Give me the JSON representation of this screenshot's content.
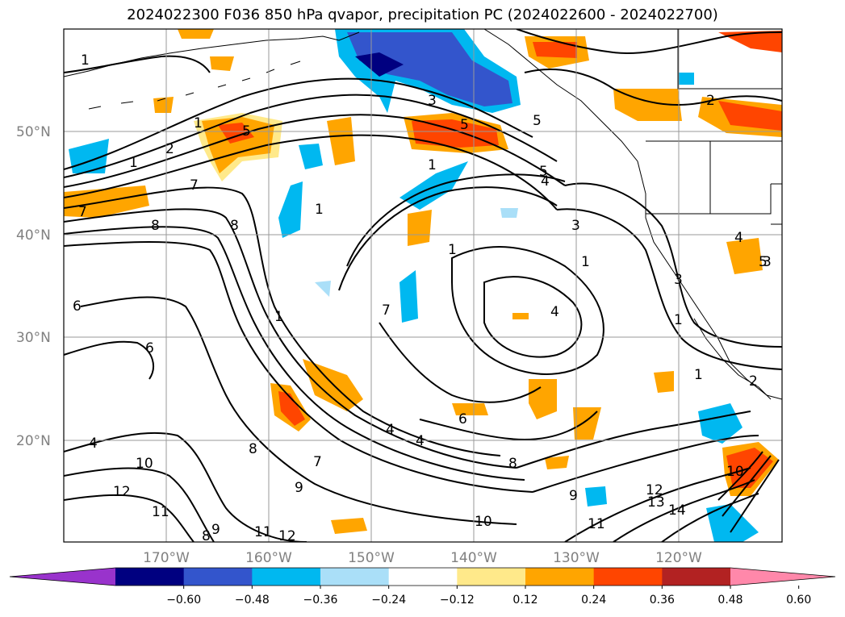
{
  "title": "2024022300 F036 850 hPa qvapor, precipitation PC (2024022600 - 2024022700)",
  "lat_labels": [
    "50°N",
    "40°N",
    "30°N",
    "20°N"
  ],
  "lon_labels": [
    "170°W",
    "160°W",
    "150°W",
    "140°W",
    "130°W",
    "120°W"
  ],
  "colorbar": {
    "ticks": [
      "−0.60",
      "−0.48",
      "−0.36",
      "−0.24",
      "−0.12",
      "0.12",
      "0.24",
      "0.36",
      "0.48",
      "0.60"
    ],
    "colors": [
      "#9933cc",
      "#000080",
      "#3355cc",
      "#00b8f0",
      "#aadff8",
      "#ffffff",
      "#ffe98a",
      "#ffa500",
      "#ff4500",
      "#b22222",
      "#ff88aa"
    ]
  },
  "contour_labels": [
    "1",
    "2",
    "3",
    "4",
    "5",
    "6",
    "7",
    "8",
    "9",
    "10",
    "11",
    "12",
    "13",
    "14"
  ],
  "contour_label_instances": [
    {
      "text": "1"
    },
    {
      "text": "1"
    },
    {
      "text": "1"
    },
    {
      "text": "1"
    },
    {
      "text": "1"
    },
    {
      "text": "1"
    },
    {
      "text": "1"
    },
    {
      "text": "1"
    },
    {
      "text": "1"
    },
    {
      "text": "1"
    },
    {
      "text": "2"
    },
    {
      "text": "2"
    },
    {
      "text": "2"
    },
    {
      "text": "3"
    },
    {
      "text": "3"
    },
    {
      "text": "3"
    },
    {
      "text": "3"
    },
    {
      "text": "4"
    },
    {
      "text": "4"
    },
    {
      "text": "4"
    },
    {
      "text": "4"
    },
    {
      "text": "4"
    },
    {
      "text": "4"
    },
    {
      "text": "5"
    },
    {
      "text": "5"
    },
    {
      "text": "5"
    },
    {
      "text": "5"
    },
    {
      "text": "5"
    },
    {
      "text": "6"
    },
    {
      "text": "6"
    },
    {
      "text": "6"
    },
    {
      "text": "7"
    },
    {
      "text": "7"
    },
    {
      "text": "7"
    },
    {
      "text": "7"
    },
    {
      "text": "8"
    },
    {
      "text": "8"
    },
    {
      "text": "8"
    },
    {
      "text": "8"
    },
    {
      "text": "8"
    },
    {
      "text": "9"
    },
    {
      "text": "9"
    },
    {
      "text": "9"
    },
    {
      "text": "10"
    },
    {
      "text": "10"
    },
    {
      "text": "10"
    },
    {
      "text": "11"
    },
    {
      "text": "11"
    },
    {
      "text": "11"
    },
    {
      "text": "12"
    },
    {
      "text": "12"
    },
    {
      "text": "12"
    },
    {
      "text": "13"
    },
    {
      "text": "14"
    }
  ]
}
